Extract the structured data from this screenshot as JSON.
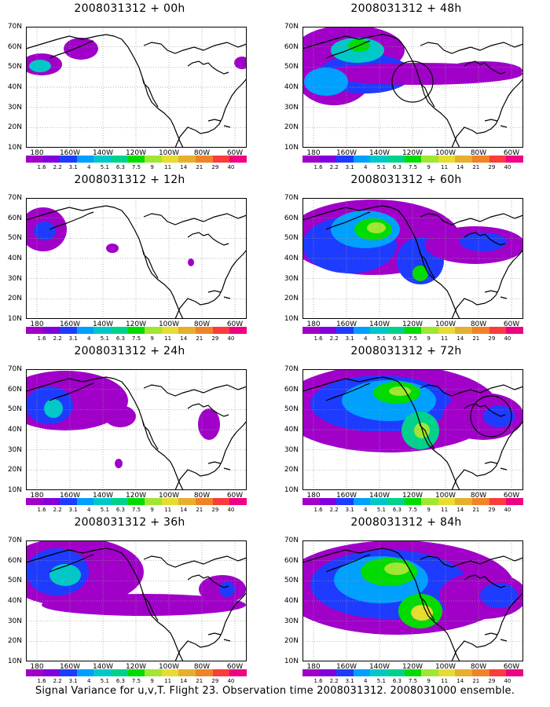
{
  "panels": [
    {
      "title": "2008031312 + 00h"
    },
    {
      "title": "2008031312 + 48h"
    },
    {
      "title": "2008031312 + 12h"
    },
    {
      "title": "2008031312 + 60h"
    },
    {
      "title": "2008031312 + 24h"
    },
    {
      "title": "2008031312 + 72h"
    },
    {
      "title": "2008031312 + 36h"
    },
    {
      "title": "2008031312 + 84h"
    }
  ],
  "lat_labels": [
    "70N",
    "60N",
    "50N",
    "40N",
    "30N",
    "20N",
    "10N"
  ],
  "lon_labels": [
    "180",
    "160W",
    "140W",
    "120W",
    "100W",
    "80W",
    "60W"
  ],
  "colorbar": {
    "labels": [
      "1.6",
      "2.2",
      "3.1",
      "4",
      "5.1",
      "6.3",
      "7.5",
      "9",
      "11",
      "14",
      "21",
      "29",
      "40"
    ],
    "colors": [
      "#a000c8",
      "#8200dc",
      "#1e3cff",
      "#00a0ff",
      "#00c8c8",
      "#00d28c",
      "#00dc00",
      "#a0e632",
      "#e6dc32",
      "#e6af2d",
      "#f08228",
      "#fa3c3c",
      "#f00082"
    ]
  },
  "footer": "Signal Variance for u,v,T. Flight 23. Observation time 2008031312. 2008031000 ensemble."
}
